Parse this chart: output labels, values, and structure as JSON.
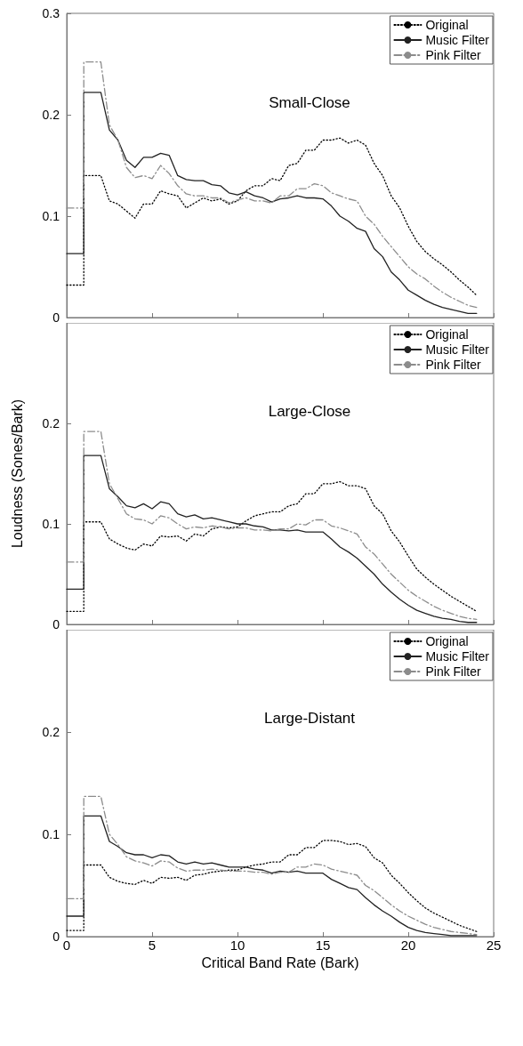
{
  "chart_data": [
    {
      "type": "line",
      "title": "Small-Close",
      "x": [
        0,
        1,
        1,
        2,
        2.5,
        3,
        3.5,
        4,
        4.5,
        5,
        5.5,
        6,
        6.5,
        7,
        7.5,
        8,
        8.5,
        9,
        9.5,
        10,
        10.5,
        11,
        11.5,
        12,
        12.5,
        13,
        13.5,
        14,
        14.5,
        15,
        15.5,
        16,
        16.5,
        17,
        17.5,
        18,
        18.5,
        19,
        19.5,
        20,
        20.5,
        21,
        21.5,
        22,
        22.5,
        23,
        23.5,
        24
      ],
      "xlim": [
        0,
        25
      ],
      "xticks": [
        0,
        5,
        10,
        15,
        20,
        25
      ],
      "ylim": [
        0,
        0.3
      ],
      "yticks": [
        0,
        0.1,
        0.2,
        0.3
      ],
      "tick_labels": "y",
      "legend": "top right",
      "marker": "none",
      "grid": false,
      "series": [
        {
          "name": "Original",
          "color": "#000000",
          "line_style": "dotted",
          "values": [
            0.032,
            0.032,
            0.14,
            0.14,
            0.115,
            0.112,
            0.105,
            0.098,
            0.112,
            0.112,
            0.125,
            0.122,
            0.12,
            0.108,
            0.113,
            0.118,
            0.115,
            0.117,
            0.112,
            0.115,
            0.125,
            0.13,
            0.13,
            0.137,
            0.135,
            0.15,
            0.152,
            0.165,
            0.165,
            0.175,
            0.175,
            0.177,
            0.172,
            0.175,
            0.17,
            0.152,
            0.14,
            0.12,
            0.108,
            0.09,
            0.075,
            0.065,
            0.058,
            0.052,
            0.045,
            0.037,
            0.03,
            0.022
          ]
        },
        {
          "name": "Music Filter",
          "color": "#222222",
          "line_style": "solid",
          "values": [
            0.063,
            0.063,
            0.222,
            0.222,
            0.185,
            0.175,
            0.155,
            0.148,
            0.158,
            0.158,
            0.162,
            0.16,
            0.14,
            0.136,
            0.135,
            0.135,
            0.131,
            0.13,
            0.123,
            0.121,
            0.124,
            0.12,
            0.118,
            0.114,
            0.117,
            0.118,
            0.12,
            0.118,
            0.118,
            0.117,
            0.11,
            0.1,
            0.095,
            0.088,
            0.085,
            0.068,
            0.06,
            0.045,
            0.037,
            0.027,
            0.022,
            0.017,
            0.013,
            0.01,
            0.008,
            0.006,
            0.004,
            0.004
          ]
        },
        {
          "name": "Pink Filter",
          "color": "#8c8c8c",
          "line_style": "dashed",
          "values": [
            0.108,
            0.108,
            0.252,
            0.252,
            0.19,
            0.175,
            0.148,
            0.138,
            0.14,
            0.137,
            0.15,
            0.142,
            0.13,
            0.122,
            0.12,
            0.12,
            0.118,
            0.118,
            0.113,
            0.116,
            0.118,
            0.115,
            0.115,
            0.113,
            0.12,
            0.12,
            0.127,
            0.127,
            0.132,
            0.13,
            0.123,
            0.12,
            0.117,
            0.115,
            0.1,
            0.092,
            0.08,
            0.07,
            0.06,
            0.05,
            0.043,
            0.038,
            0.031,
            0.025,
            0.02,
            0.016,
            0.012,
            0.01
          ]
        }
      ]
    },
    {
      "type": "line",
      "title": "Large-Close",
      "ylabel": "Loudness (Sones/Bark)",
      "x": [
        0,
        1,
        1,
        2,
        2.5,
        3,
        3.5,
        4,
        4.5,
        5,
        5.5,
        6,
        6.5,
        7,
        7.5,
        8,
        8.5,
        9,
        9.5,
        10,
        10.5,
        11,
        11.5,
        12,
        12.5,
        13,
        13.5,
        14,
        14.5,
        15,
        15.5,
        16,
        16.5,
        17,
        17.5,
        18,
        18.5,
        19,
        19.5,
        20,
        20.5,
        21,
        21.5,
        22,
        22.5,
        23,
        23.5,
        24
      ],
      "xlim": [
        0,
        25
      ],
      "xticks": [
        0,
        5,
        10,
        15,
        20,
        25
      ],
      "ylim": [
        0,
        0.3
      ],
      "yticks": [
        0,
        0.1,
        0.2
      ],
      "tick_labels": "y",
      "legend": "top right",
      "marker": "none",
      "grid": false,
      "series": [
        {
          "name": "Original",
          "color": "#000000",
          "line_style": "dotted",
          "values": [
            0.013,
            0.013,
            0.102,
            0.102,
            0.085,
            0.08,
            0.076,
            0.074,
            0.08,
            0.078,
            0.088,
            0.087,
            0.088,
            0.083,
            0.09,
            0.088,
            0.095,
            0.097,
            0.096,
            0.097,
            0.103,
            0.108,
            0.11,
            0.112,
            0.112,
            0.118,
            0.12,
            0.13,
            0.13,
            0.14,
            0.14,
            0.142,
            0.138,
            0.138,
            0.135,
            0.118,
            0.11,
            0.093,
            0.082,
            0.068,
            0.055,
            0.047,
            0.04,
            0.034,
            0.028,
            0.023,
            0.018,
            0.013
          ]
        },
        {
          "name": "Music Filter",
          "color": "#222222",
          "line_style": "solid",
          "values": [
            0.035,
            0.035,
            0.168,
            0.168,
            0.135,
            0.127,
            0.118,
            0.116,
            0.12,
            0.115,
            0.122,
            0.12,
            0.11,
            0.107,
            0.109,
            0.105,
            0.106,
            0.104,
            0.102,
            0.1,
            0.1,
            0.098,
            0.097,
            0.094,
            0.094,
            0.093,
            0.094,
            0.092,
            0.092,
            0.092,
            0.085,
            0.077,
            0.072,
            0.066,
            0.058,
            0.05,
            0.04,
            0.032,
            0.025,
            0.019,
            0.014,
            0.011,
            0.008,
            0.006,
            0.005,
            0.003,
            0.002,
            0.002
          ]
        },
        {
          "name": "Pink Filter",
          "color": "#8c8c8c",
          "line_style": "dashed",
          "values": [
            0.062,
            0.062,
            0.192,
            0.192,
            0.14,
            0.125,
            0.11,
            0.105,
            0.104,
            0.1,
            0.108,
            0.106,
            0.1,
            0.095,
            0.097,
            0.096,
            0.098,
            0.097,
            0.095,
            0.096,
            0.096,
            0.094,
            0.094,
            0.093,
            0.095,
            0.095,
            0.1,
            0.099,
            0.104,
            0.104,
            0.098,
            0.096,
            0.093,
            0.09,
            0.077,
            0.07,
            0.06,
            0.05,
            0.042,
            0.034,
            0.028,
            0.023,
            0.018,
            0.014,
            0.011,
            0.008,
            0.006,
            0.005
          ]
        }
      ]
    },
    {
      "type": "line",
      "title": "Large-Distant",
      "xlabel": "Critical Band Rate (Bark)",
      "x": [
        0,
        1,
        1,
        2,
        2.5,
        3,
        3.5,
        4,
        4.5,
        5,
        5.5,
        6,
        6.5,
        7,
        7.5,
        8,
        8.5,
        9,
        9.5,
        10,
        10.5,
        11,
        11.5,
        12,
        12.5,
        13,
        13.5,
        14,
        14.5,
        15,
        15.5,
        16,
        16.5,
        17,
        17.5,
        18,
        18.5,
        19,
        19.5,
        20,
        20.5,
        21,
        21.5,
        22,
        22.5,
        23,
        23.5,
        24
      ],
      "xlim": [
        0,
        25
      ],
      "xticks": [
        0,
        5,
        10,
        15,
        20,
        25
      ],
      "ylim": [
        0,
        0.3
      ],
      "yticks": [
        0,
        0.1,
        0.2
      ],
      "legend": "top right",
      "marker": "none",
      "grid": false,
      "series": [
        {
          "name": "Original",
          "color": "#000000",
          "line_style": "dotted",
          "values": [
            0.006,
            0.006,
            0.07,
            0.07,
            0.058,
            0.054,
            0.052,
            0.051,
            0.055,
            0.052,
            0.058,
            0.057,
            0.058,
            0.055,
            0.06,
            0.061,
            0.063,
            0.064,
            0.065,
            0.065,
            0.068,
            0.07,
            0.071,
            0.073,
            0.073,
            0.08,
            0.08,
            0.087,
            0.087,
            0.094,
            0.094,
            0.093,
            0.09,
            0.091,
            0.088,
            0.077,
            0.072,
            0.06,
            0.052,
            0.043,
            0.035,
            0.028,
            0.023,
            0.019,
            0.015,
            0.011,
            0.008,
            0.005
          ]
        },
        {
          "name": "Music Filter",
          "color": "#222222",
          "line_style": "solid",
          "values": [
            0.02,
            0.02,
            0.118,
            0.118,
            0.093,
            0.088,
            0.082,
            0.08,
            0.08,
            0.077,
            0.08,
            0.079,
            0.073,
            0.071,
            0.073,
            0.071,
            0.072,
            0.07,
            0.068,
            0.068,
            0.068,
            0.066,
            0.065,
            0.062,
            0.064,
            0.063,
            0.064,
            0.062,
            0.062,
            0.062,
            0.056,
            0.052,
            0.048,
            0.046,
            0.038,
            0.031,
            0.025,
            0.02,
            0.014,
            0.009,
            0.006,
            0.004,
            0.003,
            0.002,
            0.001,
            0.001,
            0.001,
            0.001
          ]
        },
        {
          "name": "Pink Filter",
          "color": "#8c8c8c",
          "line_style": "dashed",
          "values": [
            0.037,
            0.037,
            0.137,
            0.137,
            0.1,
            0.09,
            0.078,
            0.074,
            0.072,
            0.069,
            0.074,
            0.073,
            0.067,
            0.064,
            0.065,
            0.065,
            0.066,
            0.065,
            0.064,
            0.064,
            0.064,
            0.063,
            0.063,
            0.061,
            0.063,
            0.063,
            0.068,
            0.068,
            0.071,
            0.07,
            0.066,
            0.064,
            0.062,
            0.06,
            0.05,
            0.045,
            0.038,
            0.031,
            0.025,
            0.02,
            0.016,
            0.012,
            0.009,
            0.007,
            0.005,
            0.004,
            0.003,
            0.002
          ]
        }
      ]
    }
  ]
}
